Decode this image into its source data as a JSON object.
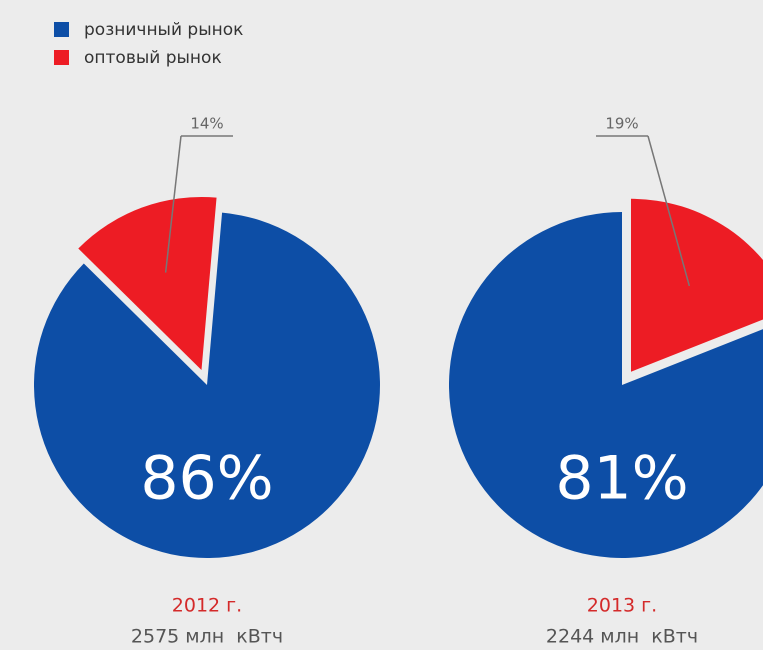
{
  "legend": [
    {
      "name": "розничный рынок",
      "color": "#0d4ea6"
    },
    {
      "name": "оптовый рынок",
      "color": "#ed1c24"
    }
  ],
  "chart_data": [
    {
      "type": "pie",
      "title": "2012 г.",
      "subtitle": "2575 млн  кВтч",
      "values": [
        86,
        14
      ],
      "value_labels": [
        "86%",
        "14%"
      ],
      "colors": [
        "#0d4ea6",
        "#ed1c24"
      ]
    },
    {
      "type": "pie",
      "title": "2013 г.",
      "subtitle": "2244 млн  кВтч",
      "values": [
        81,
        19
      ],
      "value_labels": [
        "81%",
        "19%"
      ],
      "colors": [
        "#0d4ea6",
        "#ed1c24"
      ]
    }
  ]
}
